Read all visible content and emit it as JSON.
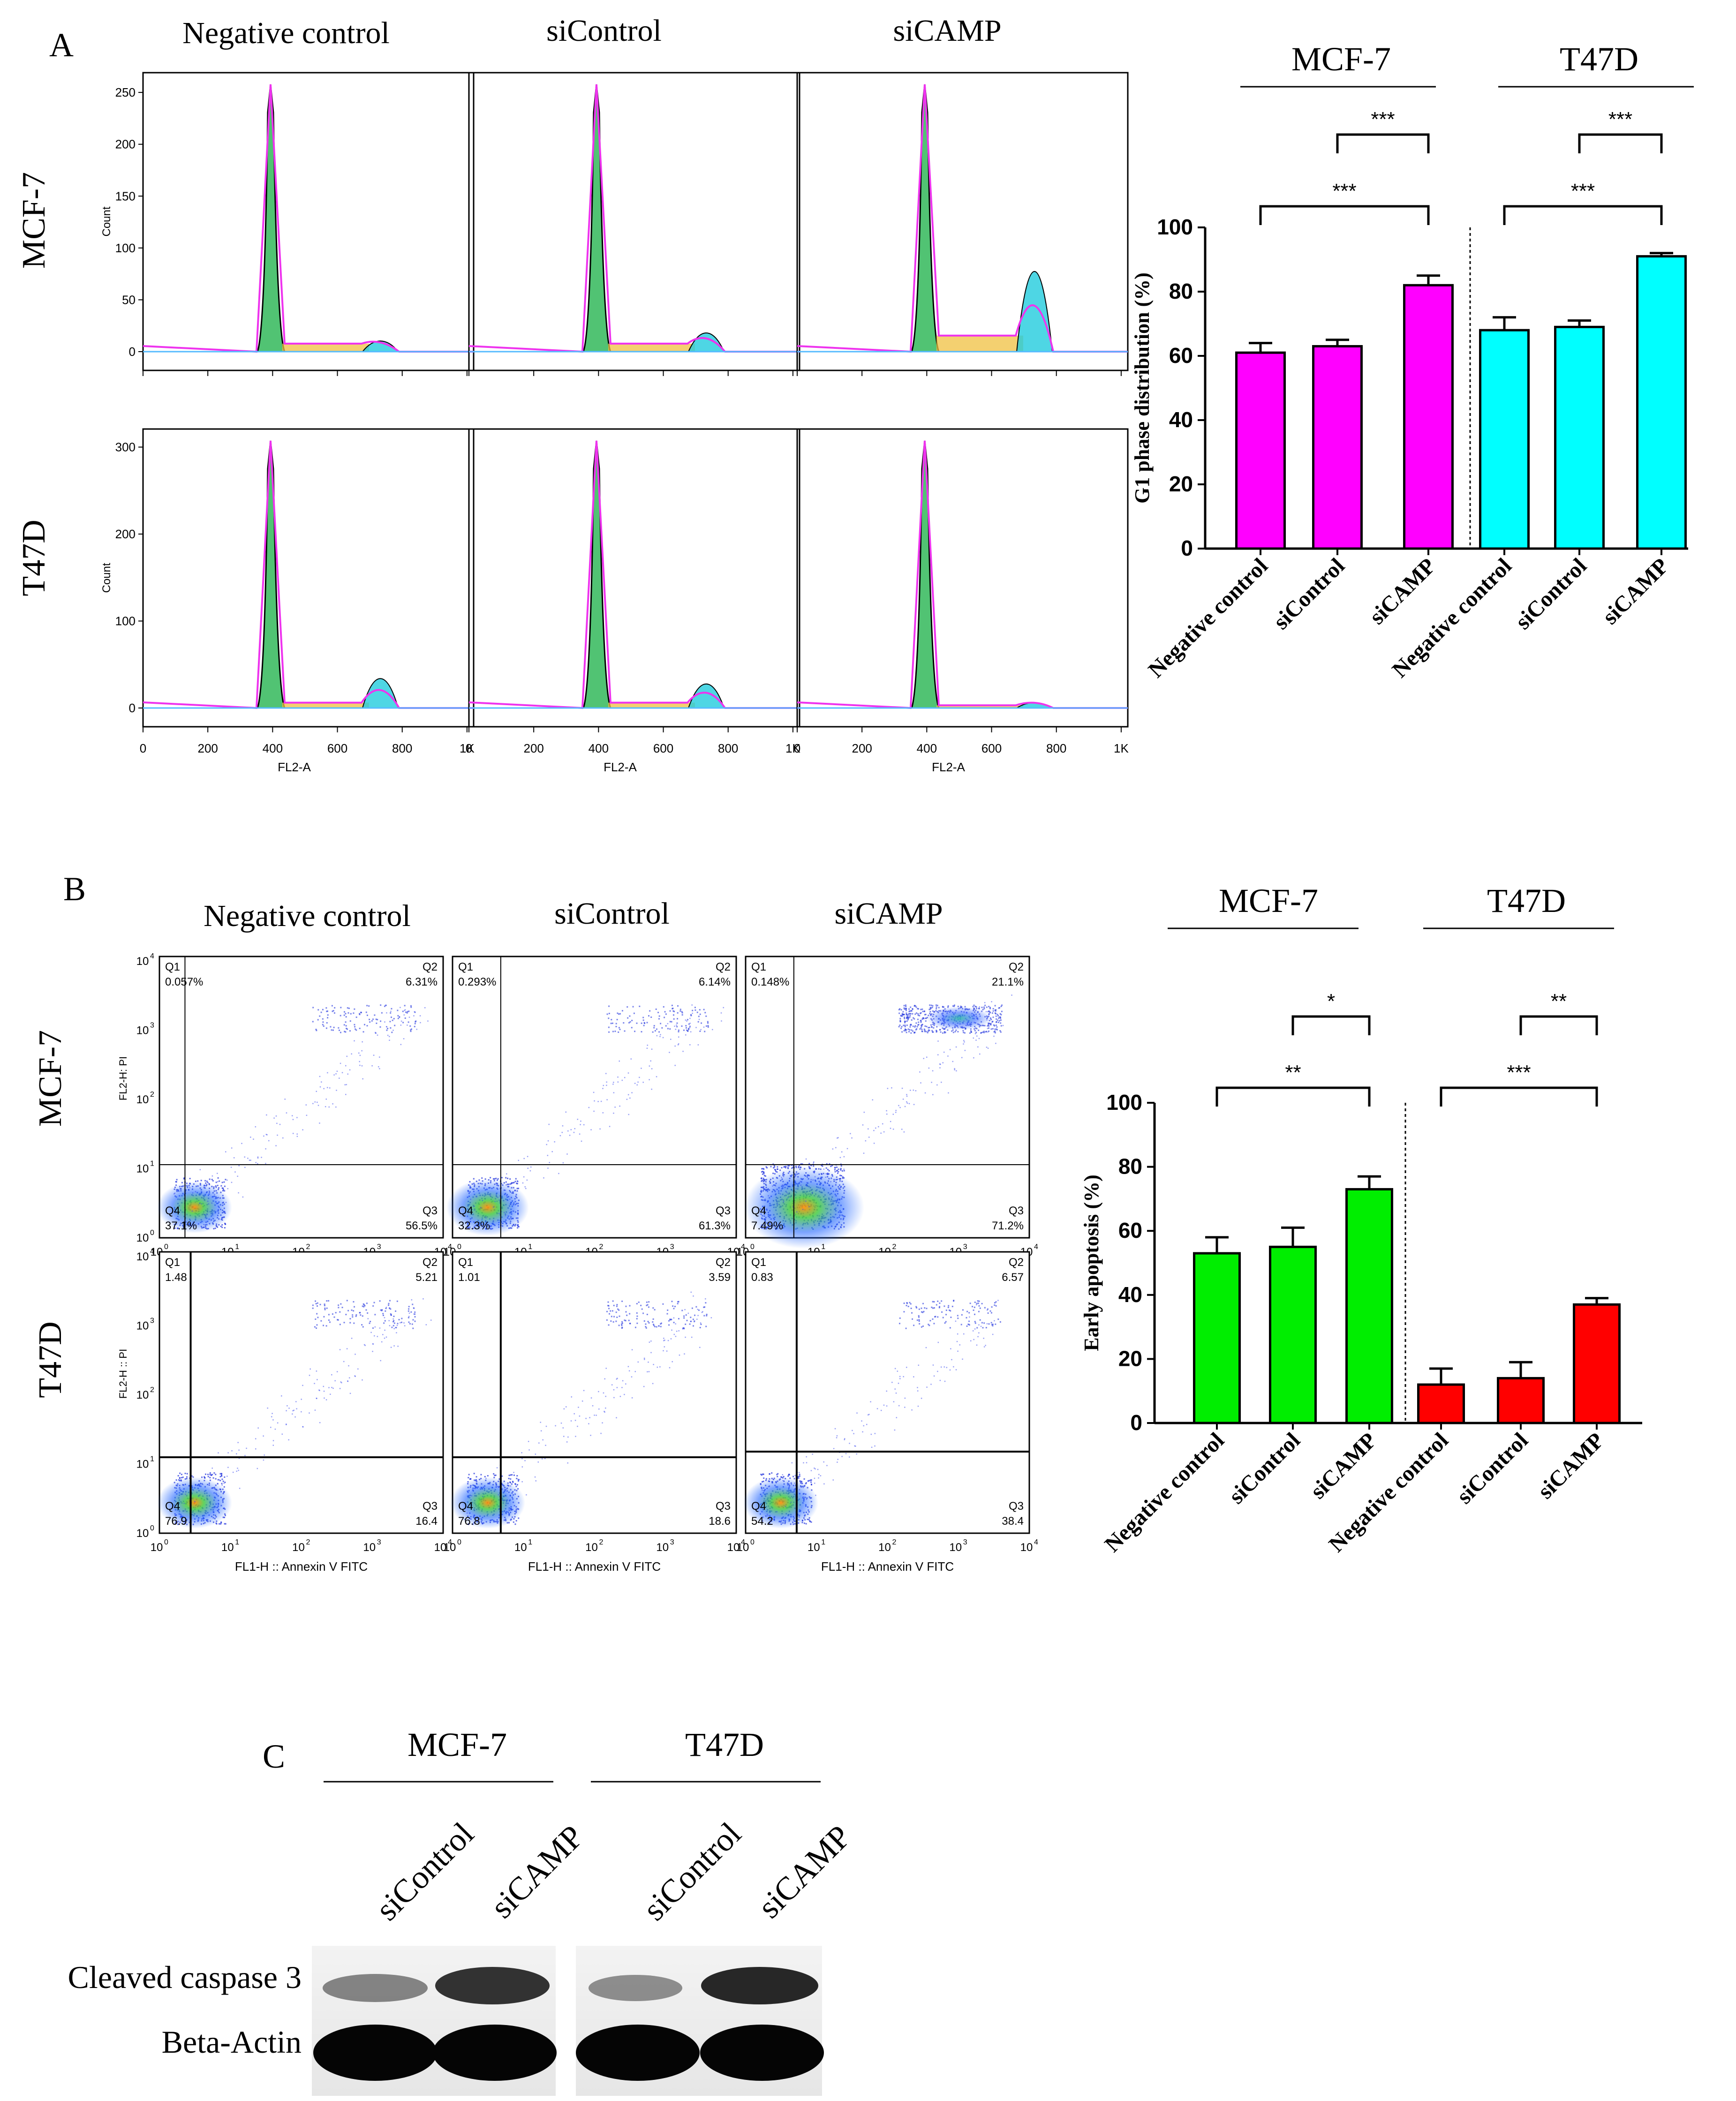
{
  "figure": {
    "panel_labels": {
      "a": "A",
      "b": "B",
      "c": "C"
    }
  },
  "panel_a": {
    "column_titles": [
      "Negative control",
      "siControl",
      "siCAMP"
    ],
    "row_labels": [
      "MCF-7",
      "T47D"
    ],
    "y_axis_label": "Count",
    "x_axis_label": "FL2-A",
    "x_ticks": [
      "0",
      "200",
      "400",
      "600",
      "800",
      "1K"
    ],
    "y_ticks_mcf7": [
      "0",
      "50",
      "100",
      "150",
      "200",
      "250"
    ],
    "y_ticks_t47d": [
      "0",
      "100",
      "200",
      "300"
    ]
  },
  "panel_b": {
    "column_titles": [
      "Negative control",
      "siControl",
      "siCAMP"
    ],
    "row_labels": [
      "MCF-7",
      "T47D"
    ],
    "x_axis_label": "FL1-H :: Annexin V FITC",
    "y_axis_label_mcf7": "FL2-H: PI",
    "y_axis_label_t47d": "FL2-H :: PI",
    "quadrant_names": [
      "Q1",
      "Q2",
      "Q3",
      "Q4"
    ],
    "quadrants": [
      {
        "row": "MCF-7",
        "col": "Negative control",
        "q1": "0.057%",
        "q2": "6.31%",
        "q3": "56.5%",
        "q4": "37.1%"
      },
      {
        "row": "MCF-7",
        "col": "siControl",
        "q1": "0.293%",
        "q2": "6.14%",
        "q3": "61.3%",
        "q4": "32.3%"
      },
      {
        "row": "MCF-7",
        "col": "siCAMP",
        "q1": "0.148%",
        "q2": "21.1%",
        "q3": "71.2%",
        "q4": "7.49%"
      },
      {
        "row": "T47D",
        "col": "Negative control",
        "q1": "1.48",
        "q2": "5.21",
        "q3": "16.4",
        "q4": "76.9"
      },
      {
        "row": "T47D",
        "col": "siControl",
        "q1": "1.01",
        "q2": "3.59",
        "q3": "18.6",
        "q4": "76.8"
      },
      {
        "row": "T47D",
        "col": "siCAMP",
        "q1": "0.83",
        "q2": "6.57",
        "q3": "38.4",
        "q4": "54.2"
      }
    ]
  },
  "panel_c": {
    "group_labels": [
      "MCF-7",
      "T47D"
    ],
    "lane_labels": [
      "siControl",
      "siCAMP",
      "siControl",
      "siCAMP"
    ],
    "band_labels": [
      "Cleaved caspase 3",
      "Beta-Actin"
    ]
  },
  "chart_data": [
    {
      "type": "bar",
      "title": "",
      "groups": [
        "MCF-7",
        "T47D"
      ],
      "categories": [
        "Negative control",
        "siControl",
        "siCAMP",
        "Negative control",
        "siControl",
        "siCAMP"
      ],
      "values": [
        61,
        63,
        82,
        68,
        69,
        91
      ],
      "errors": [
        3,
        2,
        3,
        4,
        2,
        1
      ],
      "colors": [
        "#ff00ff",
        "#ff00ff",
        "#ff00ff",
        "#00ffff",
        "#00ffff",
        "#00ffff"
      ],
      "ylabel": "G1 phase distribution (%)",
      "xlabel": "",
      "ylim": [
        0,
        100
      ],
      "yticks": [
        "0",
        "20",
        "40",
        "60",
        "80",
        "100"
      ],
      "significance": [
        {
          "from": 1,
          "to": 2,
          "label": "***"
        },
        {
          "from": 0,
          "to": 2,
          "label": "***"
        },
        {
          "from": 4,
          "to": 5,
          "label": "***"
        },
        {
          "from": 3,
          "to": 5,
          "label": "***"
        }
      ]
    },
    {
      "type": "bar",
      "title": "",
      "groups": [
        "MCF-7",
        "T47D"
      ],
      "categories": [
        "Negative control",
        "siControl",
        "siCAMP",
        "Negative control",
        "siControl",
        "siCAMP"
      ],
      "values": [
        53,
        55,
        73,
        12,
        14,
        37
      ],
      "errors": [
        5,
        6,
        4,
        5,
        5,
        2
      ],
      "colors": [
        "#00ee00",
        "#00ee00",
        "#00ee00",
        "#ff0000",
        "#ff0000",
        "#ff0000"
      ],
      "ylabel": "Early apoptosis (%)",
      "xlabel": "",
      "ylim": [
        0,
        100
      ],
      "yticks": [
        "0",
        "20",
        "40",
        "60",
        "80",
        "100"
      ],
      "significance": [
        {
          "from": 1,
          "to": 2,
          "label": "*"
        },
        {
          "from": 0,
          "to": 2,
          "label": "**"
        },
        {
          "from": 4,
          "to": 5,
          "label": "**"
        },
        {
          "from": 3,
          "to": 5,
          "label": "***"
        }
      ]
    }
  ]
}
